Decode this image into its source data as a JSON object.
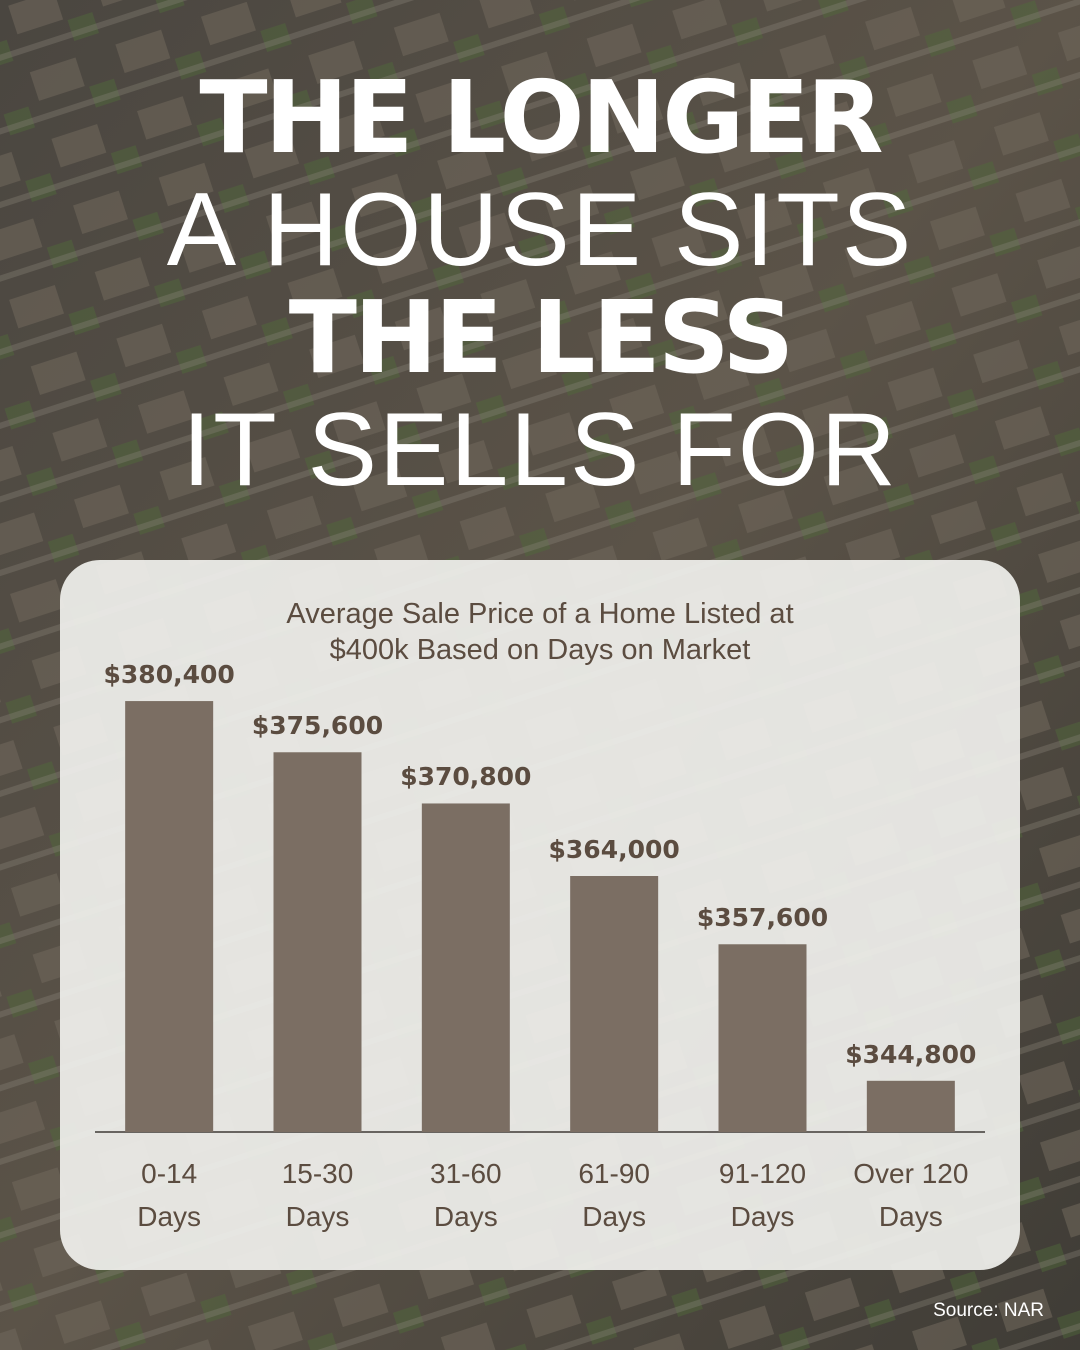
{
  "chart_data": {
    "type": "bar",
    "title_lines": [
      "THE LONGER",
      "A HOUSE SITS",
      "THE LESS",
      "IT SELLS FOR"
    ],
    "subtitle": "Average Sale Price of a Home Listed at\n$400k Based on Days on Market",
    "categories": [
      "0-14\nDays",
      "15-30\nDays",
      "31-60\nDays",
      "61-90\nDays",
      "91-120\nDays",
      "Over 120\nDays"
    ],
    "values": [
      380400,
      375600,
      370800,
      364000,
      357600,
      344800
    ],
    "value_labels": [
      "$380,400",
      "$375,600",
      "$370,800",
      "$364,000",
      "$357,600",
      "$344,800"
    ],
    "color": "#7b6e63",
    "ylim": [
      340000,
      385000
    ],
    "source": "Source: NAR"
  }
}
